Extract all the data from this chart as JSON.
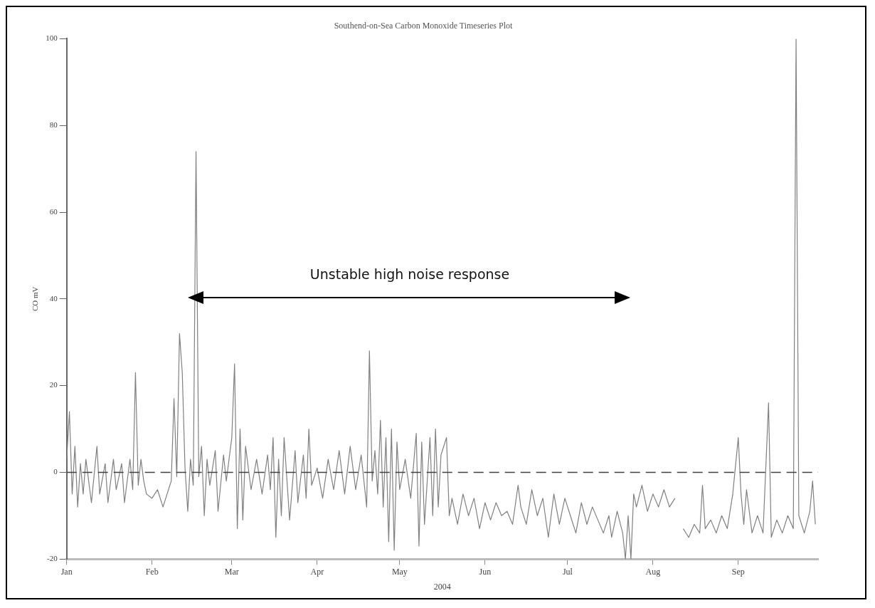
{
  "chart_data": {
    "type": "line",
    "title": "Southend-on-Sea Carbon Monoxide Timeseries Plot",
    "xlabel": "2004",
    "ylabel": "CO mV",
    "annotations": [
      "Unstable high noise response"
    ],
    "x": [
      "2004-01-01",
      "2004-01-02",
      "2004-01-03",
      "2004-01-04",
      "2004-01-05",
      "2004-01-06",
      "2004-01-07",
      "2004-01-08",
      "2004-01-10",
      "2004-01-12",
      "2004-01-13",
      "2004-01-15",
      "2004-01-16",
      "2004-01-18",
      "2004-01-19",
      "2004-01-21",
      "2004-01-22",
      "2004-01-24",
      "2004-01-25",
      "2004-01-26",
      "2004-01-27",
      "2004-01-28",
      "2004-01-29",
      "2004-01-30",
      "2004-02-01",
      "2004-02-03",
      "2004-02-05",
      "2004-02-07",
      "2004-02-08",
      "2004-02-09",
      "2004-02-10",
      "2004-02-11",
      "2004-02-12",
      "2004-02-13",
      "2004-02-14",
      "2004-02-15",
      "2004-02-16",
      "2004-02-17",
      "2004-02-18",
      "2004-02-19",
      "2004-02-20",
      "2004-02-21",
      "2004-02-22",
      "2004-02-24",
      "2004-02-25",
      "2004-02-27",
      "2004-02-28",
      "2004-03-01",
      "2004-03-02",
      "2004-03-03",
      "2004-03-04",
      "2004-03-05",
      "2004-03-06",
      "2004-03-08",
      "2004-03-10",
      "2004-03-12",
      "2004-03-14",
      "2004-03-15",
      "2004-03-16",
      "2004-03-17",
      "2004-03-18",
      "2004-03-19",
      "2004-03-20",
      "2004-03-22",
      "2004-03-24",
      "2004-03-25",
      "2004-03-27",
      "2004-03-28",
      "2004-03-29",
      "2004-03-30",
      "2004-04-01",
      "2004-04-03",
      "2004-04-05",
      "2004-04-07",
      "2004-04-09",
      "2004-04-11",
      "2004-04-13",
      "2004-04-15",
      "2004-04-17",
      "2004-04-19",
      "2004-04-20",
      "2004-04-21",
      "2004-04-22",
      "2004-04-23",
      "2004-04-24",
      "2004-04-25",
      "2004-04-26",
      "2004-04-27",
      "2004-04-28",
      "2004-04-29",
      "2004-04-30",
      "2004-05-01",
      "2004-05-03",
      "2004-05-05",
      "2004-05-07",
      "2004-05-08",
      "2004-05-09",
      "2004-05-10",
      "2004-05-12",
      "2004-05-13",
      "2004-05-14",
      "2004-05-15",
      "2004-05-16",
      "2004-05-18",
      "2004-05-19",
      "2004-05-20",
      "2004-05-22",
      "2004-05-24",
      "2004-05-26",
      "2004-05-28",
      "2004-05-30",
      "2004-06-01",
      "2004-06-03",
      "2004-06-05",
      "2004-06-07",
      "2004-06-09",
      "2004-06-11",
      "2004-06-13",
      "2004-06-14",
      "2004-06-16",
      "2004-06-18",
      "2004-06-20",
      "2004-06-22",
      "2004-06-24",
      "2004-06-26",
      "2004-06-28",
      "2004-06-30",
      "2004-07-02",
      "2004-07-04",
      "2004-07-06",
      "2004-07-08",
      "2004-07-10",
      "2004-07-12",
      "2004-07-14",
      "2004-07-16",
      "2004-07-17",
      "2004-07-19",
      "2004-07-21",
      "2004-07-22",
      "2004-07-23",
      "2004-07-24",
      "2004-07-25",
      "2004-07-26",
      "2004-07-28",
      "2004-07-30",
      "2004-08-01",
      "2004-08-03",
      "2004-08-05",
      "2004-08-07",
      "2004-08-09",
      "2004-08-11",
      "2004-08-12",
      "2004-08-14",
      "2004-08-16",
      "2004-08-18",
      "2004-08-19",
      "2004-08-20",
      "2004-08-22",
      "2004-08-24",
      "2004-08-26",
      "2004-08-28",
      "2004-08-30",
      "2004-09-01",
      "2004-09-02",
      "2004-09-03",
      "2004-09-04",
      "2004-09-06",
      "2004-09-08",
      "2004-09-10",
      "2004-09-12",
      "2004-09-13",
      "2004-09-15",
      "2004-09-17",
      "2004-09-19",
      "2004-09-21",
      "2004-09-22",
      "2004-09-23",
      "2004-09-25",
      "2004-09-27",
      "2004-09-28",
      "2004-09-29"
    ],
    "series": [
      {
        "color": "#808080",
        "values": [
          3,
          14,
          -5,
          6,
          -8,
          2,
          -5,
          3,
          -7,
          6,
          -5,
          2,
          -7,
          3,
          -4,
          2,
          -7,
          3,
          -4,
          23,
          -3,
          3,
          -2,
          -5,
          -6,
          -4,
          -8,
          -4,
          -2,
          17,
          -1,
          32,
          23,
          1,
          -9,
          3,
          -3,
          74,
          -1,
          6,
          -10,
          3,
          -3,
          5,
          -9,
          4,
          -2,
          8,
          25,
          -13,
          10,
          -11,
          6,
          -4,
          3,
          -5,
          4,
          -4,
          8,
          -15,
          3,
          -10,
          8,
          -11,
          5,
          -7,
          4,
          -6,
          10,
          -3,
          1,
          -6,
          3,
          -4,
          5,
          -5,
          6,
          -4,
          4,
          -8,
          28,
          -2,
          5,
          -5,
          12,
          -8,
          8,
          -16,
          10,
          -18,
          7,
          -4,
          3,
          -6,
          9,
          -17,
          7,
          -12,
          8,
          -10,
          10,
          -8,
          4,
          8,
          -10,
          -6,
          -12,
          -5,
          -10,
          -6,
          -13,
          -7,
          -11,
          -7,
          -10,
          -9,
          -12,
          -3,
          -8,
          -12,
          -4,
          -10,
          -6,
          -15,
          -5,
          -12,
          -6,
          -10,
          -14,
          -7,
          -12,
          -8,
          -11,
          -14,
          -10,
          -15,
          -9,
          -14,
          -20,
          -10,
          -20,
          -5,
          -8,
          -3,
          -9,
          -5,
          -8,
          -4,
          -8,
          -6,
          null,
          -13,
          -15,
          -12,
          -14,
          -3,
          -13,
          -11,
          -14,
          -10,
          -13,
          -5,
          8,
          -5,
          -12,
          -4,
          -14,
          -10,
          -14,
          16,
          -15,
          -11,
          -14,
          -10,
          -13,
          100,
          -10,
          -14,
          -9,
          -2,
          -12
        ]
      }
    ],
    "xlim": [
      "2004-01-01",
      "2004-09-30"
    ],
    "xticks": [
      {
        "value": "2004-01-01",
        "label": "Jan"
      },
      {
        "value": "2004-02-01",
        "label": "Feb"
      },
      {
        "value": "2004-03-01",
        "label": "Mar"
      },
      {
        "value": "2004-04-01",
        "label": "Apr"
      },
      {
        "value": "2004-05-01",
        "label": "May"
      },
      {
        "value": "2004-06-01",
        "label": "Jun"
      },
      {
        "value": "2004-07-01",
        "label": "Jul"
      },
      {
        "value": "2004-08-01",
        "label": "Aug"
      },
      {
        "value": "2004-09-01",
        "label": "Sep"
      }
    ],
    "ylim": [
      -20,
      100
    ],
    "yticks": [
      -20,
      0,
      20,
      40,
      60,
      80,
      100
    ],
    "ref_lines": [
      {
        "axis": "y",
        "value": 0,
        "color": "#404040",
        "line_style": "dashed"
      }
    ],
    "grid": false,
    "legend": false
  }
}
